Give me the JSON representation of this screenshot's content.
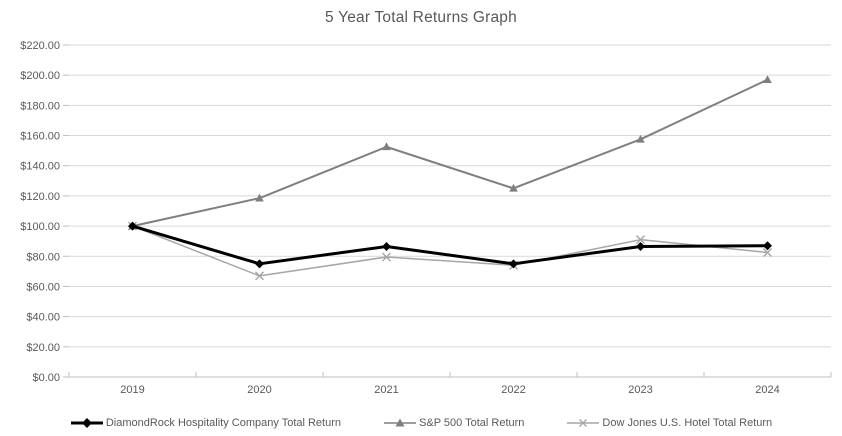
{
  "title": "5 Year Total Returns Graph",
  "colors": {
    "title_text": "#595959",
    "axis_text": "#595959",
    "gridline": "#d9d9d9",
    "axis_line": "#bfbfbf",
    "background": "#ffffff"
  },
  "chart_data": {
    "type": "line",
    "title": "5 Year Total Returns Graph",
    "categories": [
      "2019",
      "2020",
      "2021",
      "2022",
      "2023",
      "2024"
    ],
    "series": [
      {
        "name": "DiamondRock Hospitality Company Total Return",
        "values": [
          100,
          75,
          86.5,
          75,
          86.5,
          87
        ],
        "color": "#000000",
        "marker": "diamond",
        "line_width": 3
      },
      {
        "name": "S&P 500 Total Return",
        "values": [
          100,
          118.5,
          152.5,
          125,
          157.5,
          197
        ],
        "color": "#7f7f7f",
        "marker": "triangle",
        "line_width": 2
      },
      {
        "name": "Dow Jones U.S. Hotel Total Return",
        "values": [
          100,
          67,
          79.5,
          74,
          91,
          82.5
        ],
        "color": "#a6a6a6",
        "marker": "x",
        "line_width": 1.5
      }
    ],
    "ylim": [
      0,
      220
    ],
    "ytick_step": 20,
    "ytick_labels": [
      "$0.00",
      "$20.00",
      "$40.00",
      "$60.00",
      "$80.00",
      "$100.00",
      "$120.00",
      "$140.00",
      "$160.00",
      "$180.00",
      "$200.00",
      "$220.00"
    ],
    "xlabel": "",
    "ylabel": "",
    "grid": "horizontal",
    "legend_position": "bottom"
  }
}
